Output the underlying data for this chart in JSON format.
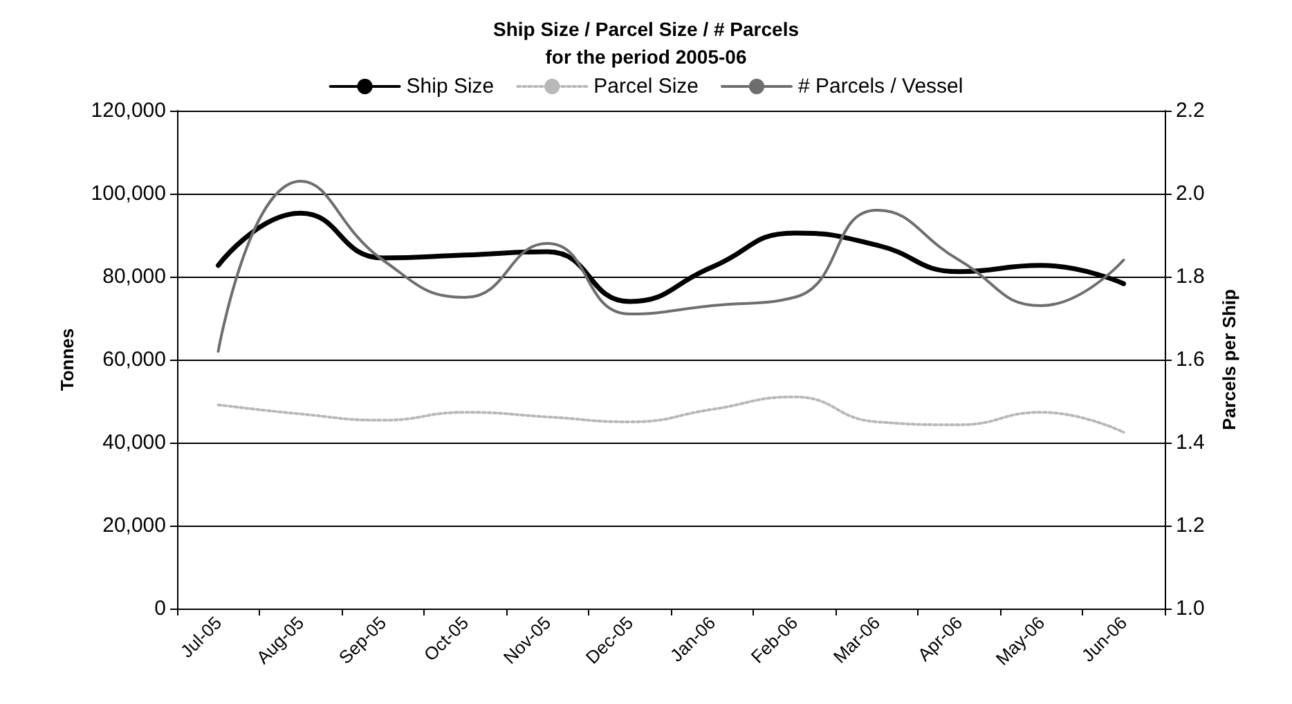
{
  "chart_data": {
    "type": "line",
    "title": "Ship Size / Parcel Size / # Parcels\nfor the period 2005-06",
    "ylabel": "Tonnes",
    "y2label": "Parcels per Ship",
    "categories": [
      "Jul-05",
      "Aug-05",
      "Sep-05",
      "Oct-05",
      "Nov-05",
      "Dec-05",
      "Jan-06",
      "Feb-06",
      "Mar-06",
      "Apr-06",
      "May-06",
      "Jun-06"
    ],
    "series": [
      {
        "name": "Ship Size",
        "color": "#000000",
        "line_style": "solid",
        "values": [
          82700,
          95300,
          84500,
          85200,
          86000,
          74000,
          82300,
          90500,
          87600,
          81200,
          82700,
          78300
        ]
      },
      {
        "name": "Parcel Size",
        "color": "#b8b8b8",
        "line_style": "dotted",
        "values": [
          49100,
          46900,
          45400,
          47300,
          46200,
          45000,
          48000,
          51000,
          45000,
          44300,
          47300,
          42500
        ]
      },
      {
        "name": "# Parcels / Vessel",
        "color": "#6e6e6e",
        "line_style": "solid",
        "axis": "y2",
        "values": [
          1.62,
          2.03,
          1.84,
          1.75,
          1.88,
          1.71,
          1.73,
          1.75,
          1.96,
          1.84,
          1.73,
          1.84
        ]
      }
    ],
    "ylim": [
      0,
      120000
    ],
    "yticks": [
      {
        "value": 0,
        "label": "0"
      },
      {
        "value": 20000,
        "label": "20,000"
      },
      {
        "value": 40000,
        "label": "40,000"
      },
      {
        "value": 60000,
        "label": "60,000"
      },
      {
        "value": 80000,
        "label": "80,000"
      },
      {
        "value": 100000,
        "label": "100,000"
      },
      {
        "value": 120000,
        "label": "120,000"
      }
    ],
    "y2lim": [
      1.0,
      2.2
    ],
    "y2ticks": [
      {
        "value": 1.0,
        "label": "1.0"
      },
      {
        "value": 1.2,
        "label": "1.2"
      },
      {
        "value": 1.4,
        "label": "1.4"
      },
      {
        "value": 1.6,
        "label": "1.6"
      },
      {
        "value": 1.8,
        "label": "1.8"
      },
      {
        "value": 2.0,
        "label": "2.0"
      },
      {
        "value": 2.2,
        "label": "2.2"
      }
    ],
    "grid": "y",
    "legend": "top",
    "marker": "none"
  }
}
